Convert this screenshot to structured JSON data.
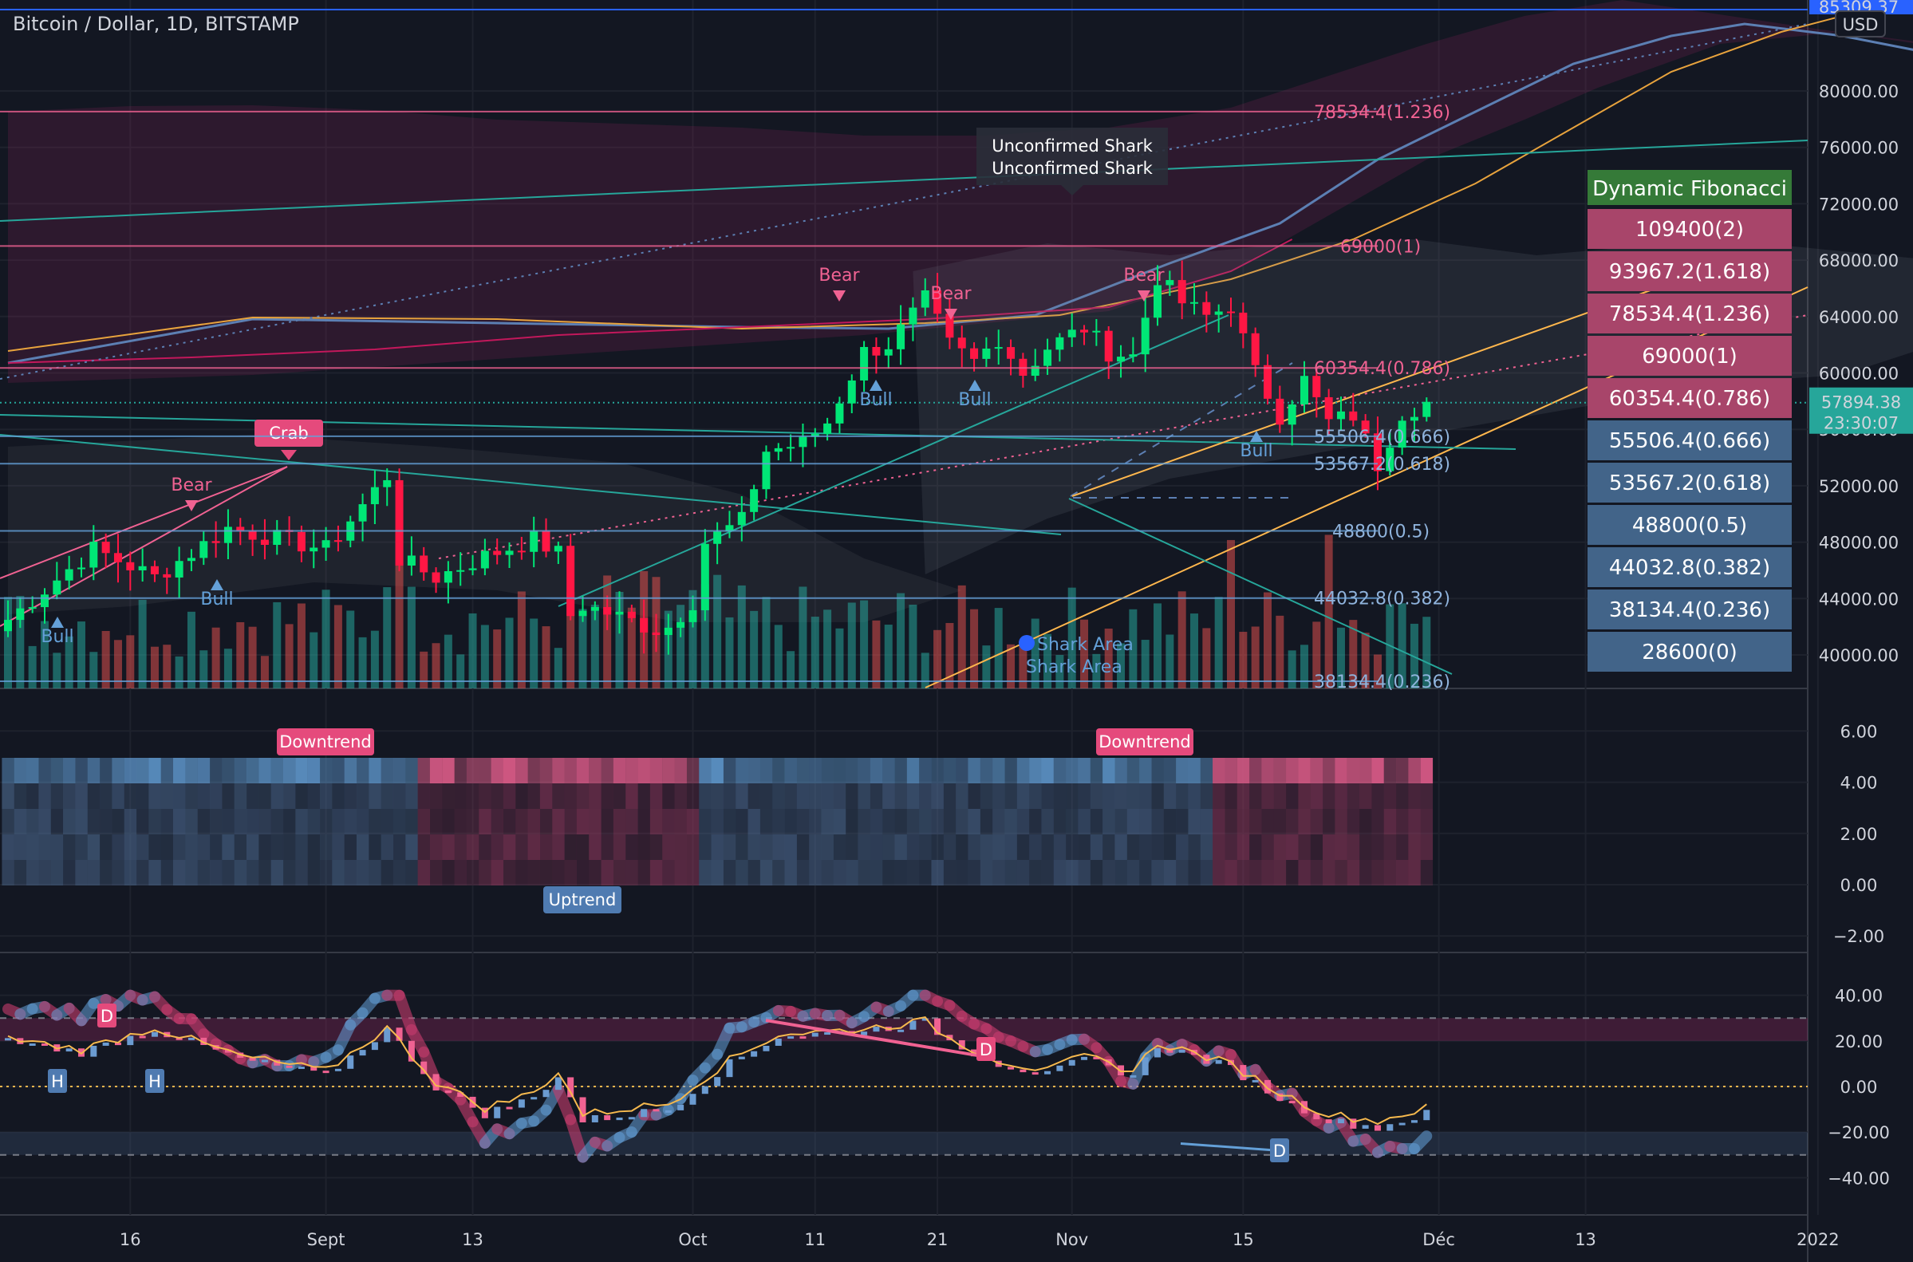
{
  "header": {
    "title": "Bitcoin / Dollar, 1D, BITSTAMP"
  },
  "currency": "USD",
  "colors": {
    "bg": "#131722",
    "grid": "#252a37",
    "up": "#26a69a",
    "down": "#ef5350",
    "candle_up": "#00e676",
    "candle_down": "#ff1744",
    "pink": "#f06292",
    "blue": "#64a0d8",
    "orange": "#f6b94e",
    "teal": "#26a69a",
    "table_header": "#357a38",
    "table_pink": "#a8456a",
    "table_blue": "#426489"
  },
  "price_axis": {
    "labels": [
      "80000.00",
      "76000.00",
      "72000.00",
      "68000.00",
      "64000.00",
      "60000.00",
      "56000.00",
      "52000.00",
      "48000.00",
      "44000.00",
      "40000.00"
    ],
    "top_partial": "85309.37",
    "current_price": "57894.38",
    "countdown": "23:30:07"
  },
  "x_axis": {
    "labels": [
      "16",
      "Sept",
      "13",
      "Oct",
      "11",
      "21",
      "Nov",
      "15",
      "Déc",
      "13",
      "2022"
    ]
  },
  "fib_levels_chart": [
    {
      "label": "78534.4(1.236)",
      "side": "pink"
    },
    {
      "label": "69000(1)",
      "side": "pink"
    },
    {
      "label": "60354.4(0.786)",
      "side": "pink"
    },
    {
      "label": "55506.4(0.666)",
      "side": "blue"
    },
    {
      "label": "53567.2(0.618)",
      "side": "blue"
    },
    {
      "label": "48800(0.5)",
      "side": "blue"
    },
    {
      "label": "44032.8(0.382)",
      "side": "blue"
    },
    {
      "label": "38134.4(0.236)",
      "side": "blue"
    }
  ],
  "fib_table": {
    "title": "Dynamic Fibonacci",
    "rows": [
      {
        "label": "109400(2)",
        "kind": "pink"
      },
      {
        "label": "93967.2(1.618)",
        "kind": "pink"
      },
      {
        "label": "78534.4(1.236)",
        "kind": "pink"
      },
      {
        "label": "69000(1)",
        "kind": "pink"
      },
      {
        "label": "60354.4(0.786)",
        "kind": "pink"
      },
      {
        "label": "55506.4(0.666)",
        "kind": "blue"
      },
      {
        "label": "53567.2(0.618)",
        "kind": "blue"
      },
      {
        "label": "48800(0.5)",
        "kind": "blue"
      },
      {
        "label": "44032.8(0.382)",
        "kind": "blue"
      },
      {
        "label": "38134.4(0.236)",
        "kind": "blue"
      },
      {
        "label": "28600(0)",
        "kind": "blue"
      }
    ]
  },
  "annotations": {
    "crab": "Crab",
    "unconfirmed_shark": [
      "Unconfirmed Shark",
      "Unconfirmed Shark"
    ],
    "shark_area": [
      "Shark Area",
      "Shark Area"
    ],
    "bear": "Bear",
    "bull": "Bull",
    "downtrend": "Downtrend",
    "uptrend": "Uptrend",
    "d": "D",
    "h": "H"
  },
  "panel2_axis": [
    "6.00",
    "4.00",
    "2.00",
    "0.00",
    "−2.00"
  ],
  "panel3_axis": [
    "40.00",
    "20.00",
    "0.00",
    "−20.00",
    "−40.00"
  ],
  "chart_data": {
    "type": "candlestick",
    "title": "Bitcoin / Dollar, 1D, BITSTAMP",
    "ylim": [
      38500,
      86500
    ],
    "price_anchors": [
      [
        "08-06",
        42500
      ],
      [
        "08-13",
        47500
      ],
      [
        "08-18",
        45500
      ],
      [
        "08-24",
        49000
      ],
      [
        "09-01",
        47500
      ],
      [
        "09-06",
        52700
      ],
      [
        "09-07",
        46800
      ],
      [
        "09-10",
        45500
      ],
      [
        "09-14",
        47000
      ],
      [
        "09-18",
        48200
      ],
      [
        "09-20",
        47200
      ],
      [
        "09-21",
        42800
      ],
      [
        "09-22",
        43500
      ],
      [
        "09-24",
        43000
      ],
      [
        "09-28",
        41800
      ],
      [
        "09-29",
        42000
      ],
      [
        "10-01",
        43800
      ],
      [
        "10-02",
        48000
      ],
      [
        "10-05",
        49500
      ],
      [
        "10-07",
        54500
      ],
      [
        "10-10",
        55000
      ],
      [
        "10-12",
        56500
      ],
      [
        "10-15",
        61500
      ],
      [
        "10-17",
        62000
      ],
      [
        "10-20",
        65200
      ],
      [
        "10-22",
        62000
      ],
      [
        "10-24",
        60800
      ],
      [
        "10-26",
        62500
      ],
      [
        "10-28",
        60000
      ],
      [
        "10-30",
        61800
      ],
      [
        "11-02",
        63200
      ],
      [
        "11-04",
        61500
      ],
      [
        "11-06",
        61200
      ],
      [
        "11-08",
        66800
      ],
      [
        "11-10",
        65000
      ],
      [
        "11-12",
        64000
      ],
      [
        "11-14",
        64800
      ],
      [
        "11-16",
        60000
      ],
      [
        "11-18",
        57000
      ],
      [
        "11-20",
        59500
      ],
      [
        "11-22",
        56500
      ],
      [
        "11-24",
        57000
      ],
      [
        "11-26",
        53500
      ],
      [
        "11-28",
        57200
      ],
      [
        "11-30",
        57900
      ]
    ],
    "fib_levels": [
      {
        "value": 109400,
        "ratio": "2"
      },
      {
        "value": 93967.2,
        "ratio": "1.618"
      },
      {
        "value": 78534.4,
        "ratio": "1.236"
      },
      {
        "value": 69000,
        "ratio": "1"
      },
      {
        "value": 60354.4,
        "ratio": "0.786"
      },
      {
        "value": 55506.4,
        "ratio": "0.666"
      },
      {
        "value": 53567.2,
        "ratio": "0.618"
      },
      {
        "value": 48800,
        "ratio": "0.5"
      },
      {
        "value": 44032.8,
        "ratio": "0.382"
      },
      {
        "value": 38134.4,
        "ratio": "0.236"
      },
      {
        "value": 28600,
        "ratio": "0"
      }
    ],
    "current_price": 57894.38,
    "panel2_ylim": [
      -2.5,
      7
    ],
    "panel3_ylim": [
      -45,
      45
    ],
    "osc_anchors": [
      [
        "08-06",
        20
      ],
      [
        "08-12",
        15
      ],
      [
        "08-18",
        25
      ],
      [
        "08-25",
        12
      ],
      [
        "09-01",
        5
      ],
      [
        "09-06",
        25
      ],
      [
        "09-10",
        0
      ],
      [
        "09-14",
        -12
      ],
      [
        "09-18",
        -5
      ],
      [
        "09-20",
        5
      ],
      [
        "09-22",
        -15
      ],
      [
        "09-26",
        -12
      ],
      [
        "09-29",
        -10
      ],
      [
        "10-01",
        -2
      ],
      [
        "10-04",
        10
      ],
      [
        "10-08",
        22
      ],
      [
        "10-14",
        24
      ],
      [
        "10-20",
        28
      ],
      [
        "10-22",
        20
      ],
      [
        "10-26",
        10
      ],
      [
        "10-30",
        5
      ],
      [
        "11-02",
        12
      ],
      [
        "11-06",
        5
      ],
      [
        "11-08",
        18
      ],
      [
        "11-10",
        15
      ],
      [
        "11-14",
        8
      ],
      [
        "11-18",
        -5
      ],
      [
        "11-22",
        -15
      ],
      [
        "11-26",
        -18
      ],
      [
        "11-30",
        -12
      ]
    ]
  }
}
